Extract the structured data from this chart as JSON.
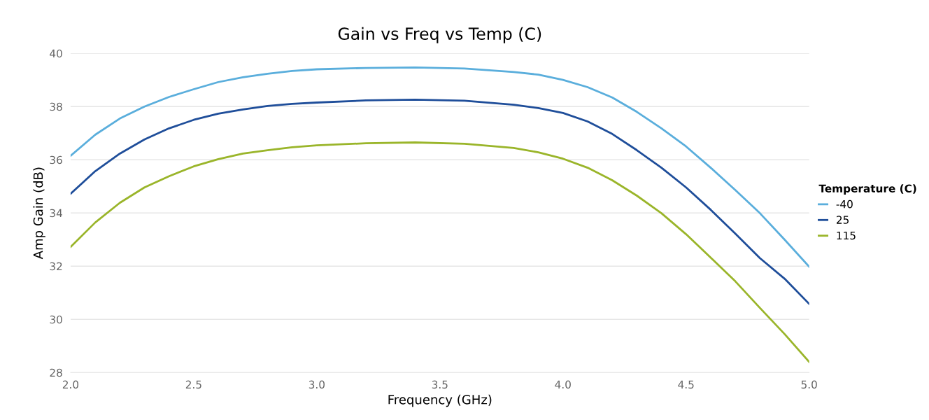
{
  "chart_data": {
    "type": "line",
    "title": "Gain vs Freq vs Temp (C)",
    "xlabel": "Frequency (GHz)",
    "ylabel": "Amp Gain (dB)",
    "legend_title": "Temperature (C)",
    "x": [
      2.0,
      2.1,
      2.2,
      2.3,
      2.4,
      2.5,
      2.6,
      2.7,
      2.8,
      2.9,
      3.0,
      3.2,
      3.4,
      3.6,
      3.8,
      3.9,
      4.0,
      4.1,
      4.2,
      4.3,
      4.4,
      4.5,
      4.6,
      4.7,
      4.8,
      4.9,
      5.0
    ],
    "series": [
      {
        "name": "-40",
        "color": "#5aaedc",
        "values": [
          36.15,
          36.94,
          37.55,
          38.0,
          38.36,
          38.65,
          38.92,
          39.1,
          39.23,
          39.34,
          39.4,
          39.45,
          39.47,
          39.43,
          39.3,
          39.2,
          39.0,
          38.73,
          38.34,
          37.8,
          37.18,
          36.5,
          35.7,
          34.86,
          33.99,
          33.0,
          31.98
        ]
      },
      {
        "name": "25",
        "color": "#1f4e9a",
        "values": [
          34.72,
          35.57,
          36.23,
          36.76,
          37.18,
          37.5,
          37.73,
          37.89,
          38.02,
          38.1,
          38.15,
          38.23,
          38.26,
          38.22,
          38.07,
          37.94,
          37.76,
          37.44,
          36.97,
          36.36,
          35.7,
          34.96,
          34.12,
          33.22,
          32.3,
          31.53,
          30.58
        ]
      },
      {
        "name": "115",
        "color": "#9ab52a",
        "values": [
          32.72,
          33.64,
          34.38,
          34.96,
          35.38,
          35.75,
          36.02,
          36.23,
          36.36,
          36.47,
          36.54,
          36.62,
          36.65,
          36.6,
          36.44,
          36.28,
          36.04,
          35.7,
          35.23,
          34.65,
          33.99,
          33.2,
          32.32,
          31.43,
          30.43,
          29.45,
          28.4
        ]
      }
    ],
    "xlim": [
      2.0,
      5.0
    ],
    "xticks": [
      {
        "value": 2.0,
        "label": "2.0"
      },
      2.5,
      {
        "value": 3.0,
        "label": "3.0"
      },
      3.5,
      {
        "value": 4.0,
        "label": "4.0"
      },
      4.5,
      {
        "value": 5.0,
        "label": "5.0"
      }
    ],
    "ylim": [
      28,
      40
    ],
    "yticks": [
      28,
      30,
      32,
      34,
      36,
      38,
      40
    ],
    "grid": "y",
    "legend": "right",
    "marker": "none",
    "line_style": "solid"
  }
}
